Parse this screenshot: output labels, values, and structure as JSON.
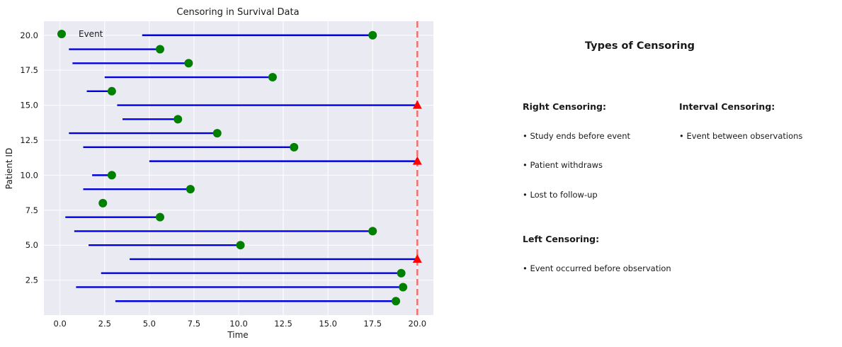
{
  "chart_data": {
    "type": "scatter",
    "title": "Censoring in Survival Data",
    "xlabel": "Time",
    "ylabel": "Patient ID",
    "xlim": [
      -0.9,
      20.9
    ],
    "ylim": [
      0,
      21
    ],
    "xticks": [
      0.0,
      2.5,
      5.0,
      7.5,
      10.0,
      12.5,
      15.0,
      17.5,
      20.0
    ],
    "xtick_labels": [
      "0.0",
      "2.5",
      "5.0",
      "7.5",
      "10.0",
      "12.5",
      "15.0",
      "17.5",
      "20.0"
    ],
    "yticks": [
      2.5,
      5.0,
      7.5,
      10.0,
      12.5,
      15.0,
      17.5,
      20.0
    ],
    "ytick_labels": [
      "2.5",
      "5.0",
      "7.5",
      "10.0",
      "12.5",
      "15.0",
      "17.5",
      "20.0"
    ],
    "grid": true,
    "legend": {
      "placement": "top-left",
      "entries": [
        {
          "label": "Event",
          "marker": "circle",
          "color": "#008000"
        }
      ]
    },
    "study_end": 20.0,
    "colors": {
      "line": "#0000dd",
      "event": "#008000",
      "censored": "#ff0000",
      "study_end": "#f07070",
      "background": "#eaeaf2",
      "grid": "#ffffff"
    },
    "patients": [
      {
        "id": 1,
        "start": 3.1,
        "end": 18.8,
        "status": "event"
      },
      {
        "id": 2,
        "start": 0.9,
        "end": 19.2,
        "status": "event"
      },
      {
        "id": 3,
        "start": 2.3,
        "end": 19.1,
        "status": "event"
      },
      {
        "id": 4,
        "start": 3.9,
        "end": 20.0,
        "status": "censored"
      },
      {
        "id": 5,
        "start": 1.6,
        "end": 10.1,
        "status": "event"
      },
      {
        "id": 6,
        "start": 0.8,
        "end": 17.5,
        "status": "event"
      },
      {
        "id": 7,
        "start": 0.3,
        "end": 5.6,
        "status": "event"
      },
      {
        "id": 8,
        "start": 2.2,
        "end": 2.4,
        "status": "event"
      },
      {
        "id": 9,
        "start": 1.3,
        "end": 7.3,
        "status": "event"
      },
      {
        "id": 10,
        "start": 1.8,
        "end": 2.9,
        "status": "event"
      },
      {
        "id": 11,
        "start": 5.0,
        "end": 20.0,
        "status": "censored"
      },
      {
        "id": 12,
        "start": 1.3,
        "end": 13.1,
        "status": "event"
      },
      {
        "id": 13,
        "start": 0.5,
        "end": 8.8,
        "status": "event"
      },
      {
        "id": 14,
        "start": 3.5,
        "end": 6.6,
        "status": "event"
      },
      {
        "id": 15,
        "start": 3.2,
        "end": 20.0,
        "status": "censored"
      },
      {
        "id": 16,
        "start": 1.5,
        "end": 2.9,
        "status": "event"
      },
      {
        "id": 17,
        "start": 2.5,
        "end": 11.9,
        "status": "event"
      },
      {
        "id": 18,
        "start": 0.7,
        "end": 7.2,
        "status": "event"
      },
      {
        "id": 19,
        "start": 0.5,
        "end": 5.6,
        "status": "event"
      },
      {
        "id": 20,
        "start": 4.6,
        "end": 17.5,
        "status": "event"
      }
    ]
  },
  "panel": {
    "title": "Types of Censoring",
    "right": {
      "title": "Right Censoring:",
      "items": [
        "• Study ends before event",
        "• Patient withdraws",
        "• Lost to follow-up"
      ]
    },
    "left": {
      "title": "Left Censoring:",
      "items": [
        "• Event occurred before observation"
      ]
    },
    "interval": {
      "title": "Interval Censoring:",
      "items": [
        "• Event between observations"
      ]
    }
  }
}
